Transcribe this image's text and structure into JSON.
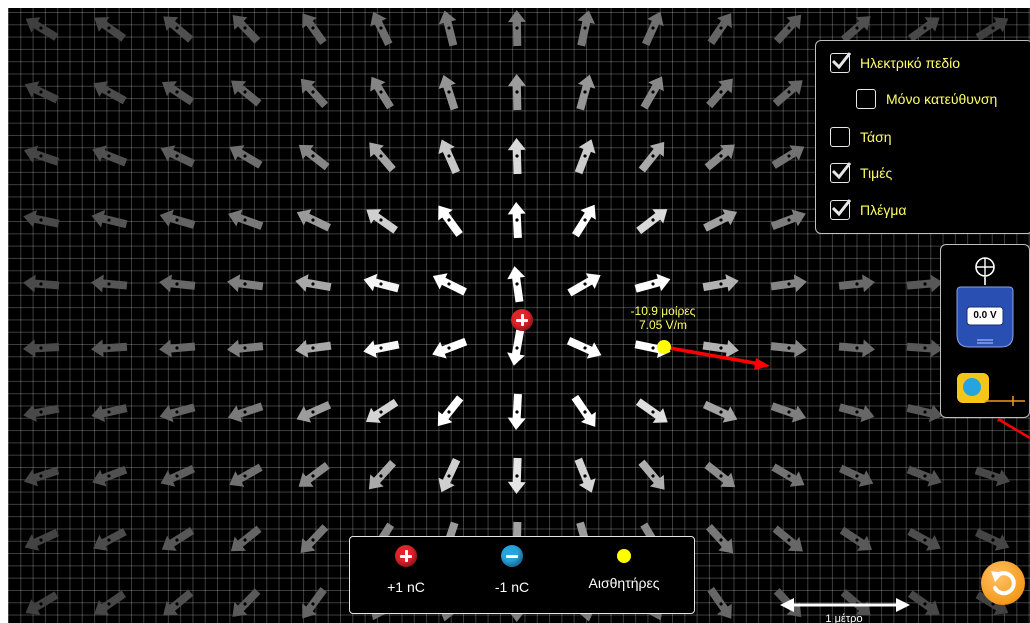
{
  "control_panel": {
    "items": [
      {
        "key": "electric-field",
        "label": "Ηλεκτρικό πεδίο",
        "checked": true
      },
      {
        "key": "direction-only",
        "label": "Μόνο κατεύθυνση",
        "checked": false
      },
      {
        "key": "voltage",
        "label": "Τάση",
        "checked": false
      },
      {
        "key": "values",
        "label": "Τιμές",
        "checked": true
      },
      {
        "key": "grid",
        "label": "Πλέγμα",
        "checked": true
      }
    ]
  },
  "toolbox": {
    "voltmeter_reading": "0.0 V"
  },
  "sensor": {
    "angle": "-10.9 μοίρες",
    "field": "7.05 V/m"
  },
  "charges_kit": {
    "positive_label": "+1 nC",
    "negative_label": "-1 nC",
    "sensors_label": "Αισθητήρες"
  },
  "scale": {
    "label": "1 μέτρο"
  },
  "colors": {
    "positive_charge": "#e0242a",
    "negative_charge": "#27a3e0",
    "sensor": "#ffff00",
    "label_yellow": "#ffff66",
    "field_vector": "#ff0000",
    "reset": "#f59a1b"
  }
}
